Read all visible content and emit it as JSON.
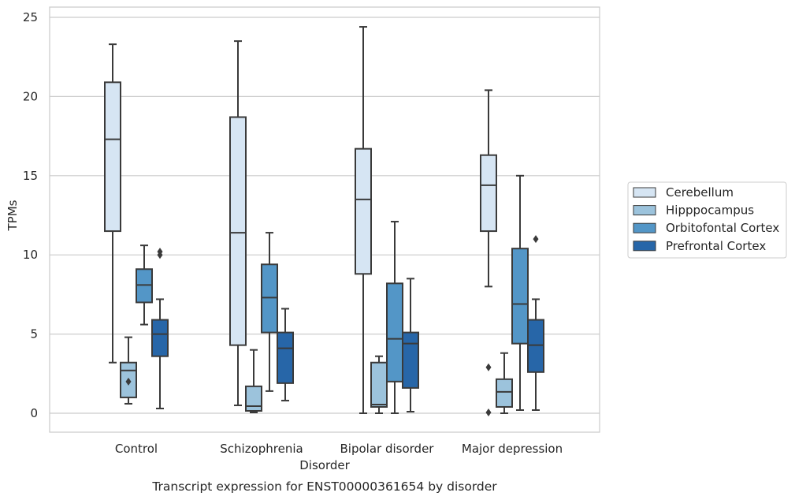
{
  "caption": "Transcript expression for ENST00000361654 by disorder",
  "chart_data": {
    "type": "box",
    "xlabel": "Disorder",
    "ylabel": "TPMs",
    "ylim": [
      -1.2,
      25.6
    ],
    "yticks": [
      0,
      5,
      10,
      15,
      20,
      25
    ],
    "grid": "horizontal",
    "legend_placement": "outside-right",
    "categories": [
      "Control",
      "Schizophrenia",
      "Bipolar disorder",
      "Major depression"
    ],
    "series": [
      {
        "name": "Cerebellum",
        "color": "#d6e5f3",
        "boxes": [
          {
            "whislo": 3.2,
            "q1": 11.5,
            "med": 17.3,
            "q3": 20.9,
            "whishi": 23.3,
            "fliers": []
          },
          {
            "whislo": 0.5,
            "q1": 4.3,
            "med": 11.4,
            "q3": 18.7,
            "whishi": 23.5,
            "fliers": []
          },
          {
            "whislo": 0.0,
            "q1": 8.8,
            "med": 13.5,
            "q3": 16.7,
            "whishi": 24.4,
            "fliers": []
          },
          {
            "whislo": 8.0,
            "q1": 11.5,
            "med": 14.4,
            "q3": 16.3,
            "whishi": 20.4,
            "fliers": [
              2.9,
              0.05
            ]
          }
        ]
      },
      {
        "name": "Hipppocampus",
        "color": "#9cc3dc",
        "boxes": [
          {
            "whislo": 0.6,
            "q1": 1.0,
            "med": 2.7,
            "q3": 3.2,
            "whishi": 4.8,
            "fliers": [
              2.0
            ]
          },
          {
            "whislo": 0.05,
            "q1": 0.15,
            "med": 0.45,
            "q3": 1.7,
            "whishi": 4.0,
            "fliers": []
          },
          {
            "whislo": 0.0,
            "q1": 0.4,
            "med": 0.55,
            "q3": 3.2,
            "whishi": 3.6,
            "fliers": []
          },
          {
            "whislo": 0.0,
            "q1": 0.4,
            "med": 1.35,
            "q3": 2.15,
            "whishi": 3.8,
            "fliers": []
          }
        ]
      },
      {
        "name": "Orbitofontal Cortex",
        "color": "#5396c7",
        "boxes": [
          {
            "whislo": 5.6,
            "q1": 7.0,
            "med": 8.1,
            "q3": 9.1,
            "whishi": 10.6,
            "fliers": []
          },
          {
            "whislo": 1.4,
            "q1": 5.1,
            "med": 7.3,
            "q3": 9.4,
            "whishi": 11.4,
            "fliers": []
          },
          {
            "whislo": 0.0,
            "q1": 2.0,
            "med": 4.7,
            "q3": 8.2,
            "whishi": 12.1,
            "fliers": []
          },
          {
            "whislo": 0.2,
            "q1": 4.4,
            "med": 6.9,
            "q3": 10.4,
            "whishi": 15.0,
            "fliers": []
          }
        ]
      },
      {
        "name": "Prefrontal Cortex",
        "color": "#2766a8",
        "boxes": [
          {
            "whislo": 0.3,
            "q1": 3.6,
            "med": 5.0,
            "q3": 5.9,
            "whishi": 7.2,
            "fliers": [
              10.2,
              10.0
            ]
          },
          {
            "whislo": 0.8,
            "q1": 1.9,
            "med": 4.1,
            "q3": 5.1,
            "whishi": 6.6,
            "fliers": []
          },
          {
            "whislo": 0.1,
            "q1": 1.6,
            "med": 4.4,
            "q3": 5.1,
            "whishi": 8.5,
            "fliers": []
          },
          {
            "whislo": 0.2,
            "q1": 2.6,
            "med": 4.3,
            "q3": 5.9,
            "whishi": 7.2,
            "fliers": [
              11.0
            ]
          }
        ]
      }
    ]
  }
}
